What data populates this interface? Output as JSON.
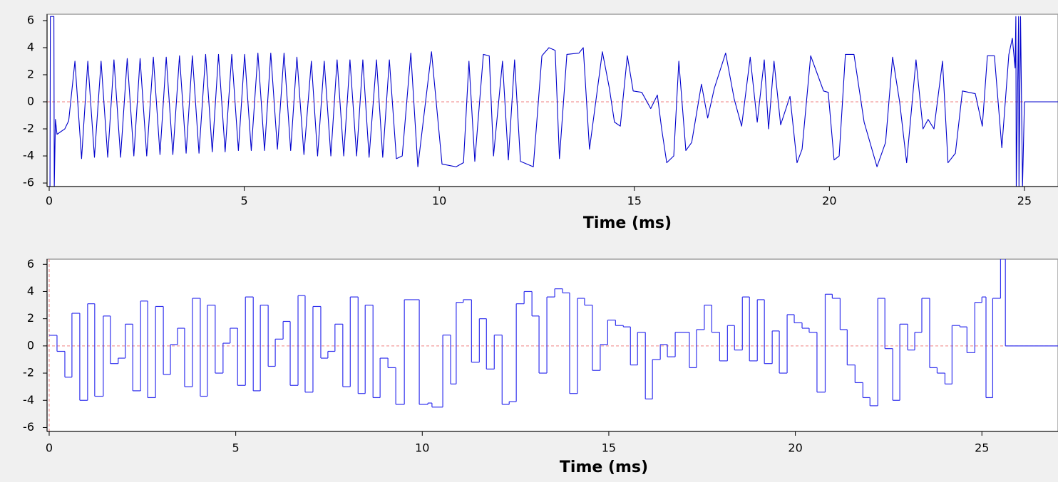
{
  "chart_data": [
    {
      "type": "line",
      "color": "#0000cc",
      "xlabel": "Time (ms)",
      "xlim": [
        -0.055,
        25.86
      ],
      "ylim": [
        -6.26,
        6.47
      ],
      "xticks": [
        0,
        5,
        10,
        15,
        20,
        25
      ],
      "yticks": [
        -6,
        -4,
        -2,
        0,
        2,
        4,
        6
      ],
      "reference_line": {
        "y": 0,
        "color": "#f08080"
      },
      "x": [
        0.02,
        0.03,
        0.12,
        0.13,
        0.16,
        0.2,
        0.4,
        0.5,
        0.66,
        0.83,
        0.99,
        1.16,
        1.33,
        1.5,
        1.66,
        1.83,
        2.0,
        2.17,
        2.33,
        2.5,
        2.67,
        2.84,
        3.0,
        3.17,
        3.34,
        3.51,
        3.67,
        3.84,
        4.01,
        4.18,
        4.34,
        4.51,
        4.68,
        4.85,
        5.01,
        5.18,
        5.35,
        5.52,
        5.68,
        5.85,
        6.02,
        6.19,
        6.35,
        6.53,
        6.72,
        6.88,
        7.05,
        7.22,
        7.38,
        7.55,
        7.71,
        7.88,
        8.04,
        8.2,
        8.39,
        8.55,
        8.72,
        8.9,
        9.05,
        9.27,
        9.45,
        9.8,
        10.07,
        10.43,
        10.62,
        10.76,
        10.91,
        11.13,
        11.28,
        11.39,
        11.62,
        11.77,
        11.93,
        12.08,
        12.41,
        12.63,
        12.81,
        12.97,
        13.08,
        13.27,
        13.58,
        13.69,
        13.85,
        14.18,
        14.36,
        14.49,
        14.64,
        14.82,
        14.97,
        15.19,
        15.42,
        15.59,
        15.7,
        15.83,
        16.01,
        16.14,
        16.32,
        16.47,
        16.72,
        16.88,
        17.05,
        17.34,
        17.56,
        17.75,
        17.97,
        18.15,
        18.33,
        18.44,
        18.58,
        18.75,
        18.99,
        19.17,
        19.3,
        19.52,
        19.85,
        19.97,
        20.12,
        20.25,
        20.41,
        20.63,
        20.89,
        21.22,
        21.44,
        21.62,
        21.8,
        21.98,
        22.22,
        22.4,
        22.53,
        22.68,
        22.9,
        23.04,
        23.23,
        23.41,
        23.74,
        23.92,
        24.05,
        24.23,
        24.42,
        24.6,
        24.69,
        24.76,
        24.78,
        24.79,
        24.85,
        24.86,
        24.9,
        24.95,
        25.0,
        25.86
      ],
      "values": [
        -6.3,
        6.3,
        6.3,
        -6.3,
        -1.3,
        -2.4,
        -2.0,
        -1.4,
        3.0,
        -4.2,
        3.0,
        -4.1,
        3.0,
        -4.1,
        3.1,
        -4.1,
        3.2,
        -4.0,
        3.2,
        -4.0,
        3.3,
        -3.9,
        3.3,
        -3.9,
        3.4,
        -3.8,
        3.4,
        -3.8,
        3.5,
        -3.7,
        3.5,
        -3.7,
        3.5,
        -3.6,
        3.5,
        -3.6,
        3.6,
        -3.6,
        3.6,
        -3.5,
        3.6,
        -3.6,
        3.3,
        -3.9,
        3.0,
        -4.0,
        3.0,
        -4.0,
        3.1,
        -4.0,
        3.1,
        -4.0,
        3.1,
        -4.1,
        3.1,
        -4.1,
        3.1,
        -4.2,
        -4.0,
        3.6,
        -4.8,
        3.7,
        -4.6,
        -4.8,
        -4.5,
        3.0,
        -4.4,
        3.5,
        3.4,
        -4.0,
        3.0,
        -4.3,
        3.1,
        -4.4,
        -4.8,
        3.4,
        4.0,
        3.8,
        -4.2,
        3.5,
        3.6,
        4.0,
        -3.5,
        3.7,
        1.0,
        -1.5,
        -1.8,
        3.4,
        0.8,
        0.7,
        -0.5,
        0.5,
        -2.0,
        -4.5,
        -4.0,
        3.0,
        -3.6,
        -3.0,
        1.3,
        -1.2,
        1.0,
        3.6,
        0.2,
        -1.8,
        3.3,
        -1.5,
        3.1,
        -2.0,
        3.0,
        -1.7,
        0.4,
        -4.5,
        -3.5,
        3.4,
        0.8,
        0.7,
        -4.3,
        -4.0,
        3.5,
        3.5,
        -1.5,
        -4.8,
        -3.0,
        3.3,
        0.0,
        -4.5,
        3.1,
        -2.0,
        -1.3,
        -2.0,
        3.0,
        -4.5,
        -3.8,
        0.8,
        0.6,
        -1.8,
        3.4,
        3.4,
        -3.4,
        3.5,
        4.7,
        2.5,
        6.3,
        -6.3,
        6.3,
        -6.3,
        6.3,
        -6.3,
        0.0,
        0.0
      ]
    },
    {
      "type": "step",
      "color": "#3333ee",
      "xlabel": "Time (ms)",
      "xlim": [
        -0.057,
        27.04
      ],
      "ylim": [
        -6.29,
        6.38
      ],
      "xticks": [
        0,
        5,
        10,
        15,
        20,
        25
      ],
      "yticks": [
        -6,
        -4,
        -2,
        0,
        2,
        4,
        6
      ],
      "reference_line": {
        "y": 0,
        "x": 0,
        "color": "#f08080"
      },
      "x": [
        0,
        0.21,
        0.42,
        0.61,
        0.82,
        1.03,
        1.22,
        1.45,
        1.64,
        1.85,
        2.04,
        2.24,
        2.45,
        2.64,
        2.85,
        3.06,
        3.25,
        3.44,
        3.63,
        3.84,
        4.05,
        4.24,
        4.45,
        4.66,
        4.85,
        5.05,
        5.26,
        5.47,
        5.66,
        5.87,
        6.06,
        6.27,
        6.46,
        6.67,
        6.86,
        7.07,
        7.28,
        7.47,
        7.66,
        7.87,
        8.07,
        8.28,
        8.47,
        8.68,
        8.87,
        9.08,
        9.29,
        9.52,
        9.92,
        10.15,
        10.26,
        10.55,
        10.76,
        10.91,
        11.1,
        11.32,
        11.53,
        11.72,
        11.93,
        12.14,
        12.33,
        12.52,
        12.73,
        12.94,
        13.13,
        13.34,
        13.55,
        13.76,
        13.95,
        14.16,
        14.35,
        14.56,
        14.77,
        14.97,
        15.18,
        15.39,
        15.58,
        15.77,
        15.98,
        16.17,
        16.38,
        16.57,
        16.78,
        17.16,
        17.35,
        17.56,
        17.76,
        17.97,
        18.18,
        18.37,
        18.58,
        18.77,
        18.98,
        19.17,
        19.38,
        19.57,
        19.78,
        19.97,
        20.18,
        20.37,
        20.58,
        20.8,
        20.99,
        21.2,
        21.39,
        21.6,
        21.81,
        22.0,
        22.21,
        22.4,
        22.61,
        22.8,
        23.01,
        23.2,
        23.39,
        23.6,
        23.8,
        24.01,
        24.2,
        24.41,
        24.6,
        24.81,
        25.0,
        25.11,
        25.29,
        25.5,
        25.63
      ],
      "values": [
        0.78,
        -0.4,
        -2.3,
        2.4,
        -4.0,
        3.1,
        -3.7,
        2.2,
        -1.3,
        -0.9,
        1.6,
        -3.3,
        3.3,
        -3.8,
        2.9,
        -2.1,
        0.1,
        1.3,
        -3.0,
        3.5,
        -3.7,
        3.0,
        -2.0,
        0.2,
        1.3,
        -2.9,
        3.6,
        -3.3,
        3.0,
        -1.5,
        0.5,
        1.8,
        -2.9,
        3.7,
        -3.4,
        2.9,
        -0.9,
        -0.4,
        1.6,
        -3.0,
        3.6,
        -3.5,
        3.0,
        -3.8,
        -0.9,
        -1.6,
        -4.3,
        3.4,
        -4.3,
        -4.2,
        -4.5,
        0.8,
        -2.8,
        3.2,
        3.4,
        -1.2,
        2.0,
        -1.7,
        0.8,
        -4.3,
        -4.1,
        3.1,
        4.0,
        2.2,
        -2.0,
        3.6,
        4.2,
        3.9,
        -3.5,
        3.5,
        3.0,
        -1.8,
        0.1,
        1.9,
        1.5,
        1.4,
        -1.4,
        1.0,
        -3.9,
        -1.0,
        0.1,
        -0.8,
        1.0,
        -1.6,
        1.2,
        3.0,
        1.0,
        -1.1,
        1.5,
        -0.3,
        3.6,
        -1.1,
        3.4,
        -1.3,
        1.1,
        -2.0,
        2.3,
        1.7,
        1.3,
        1.0,
        -3.4,
        3.8,
        3.5,
        1.2,
        -1.4,
        -2.7,
        -3.8,
        -4.4,
        3.5,
        -0.2,
        -4.0,
        1.6,
        -0.3,
        1.0,
        3.5,
        -1.6,
        -2.0,
        -2.8,
        1.5,
        1.4,
        -0.5,
        3.2,
        3.6,
        -3.8,
        3.5,
        6.4,
        0.0
      ]
    }
  ]
}
